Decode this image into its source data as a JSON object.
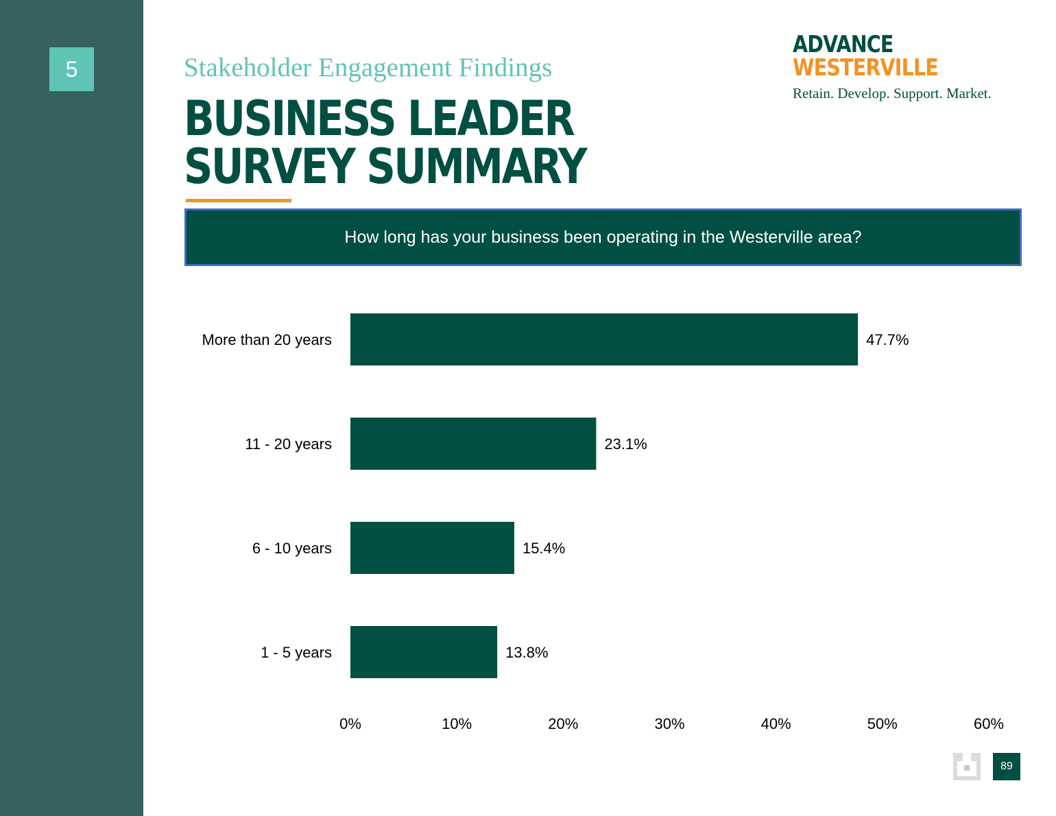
{
  "section": {
    "number": "5"
  },
  "header": {
    "subtitle": "Stakeholder Engagement Findings",
    "title": "BUSINESS LEADER SURVEY SUMMARY"
  },
  "logo": {
    "line1": "ADVANCE",
    "line2": "WESTERVILLE",
    "tagline": "Retain. Develop. Support. Market."
  },
  "question": "How long has your business been operating in the Westerville area?",
  "chart_data": {
    "type": "bar",
    "orientation": "horizontal",
    "categories": [
      "More than 20 years",
      "11 - 20 years",
      "6 - 10 years",
      "1 - 5 years"
    ],
    "values": [
      47.7,
      23.1,
      15.4,
      13.8
    ],
    "value_labels": [
      "47.7%",
      "23.1%",
      "15.4%",
      "13.8%"
    ],
    "xlim": [
      0,
      60
    ],
    "x_ticks": [
      0,
      10,
      20,
      30,
      40,
      50,
      60
    ],
    "x_tick_labels": [
      "0%",
      "10%",
      "20%",
      "30%",
      "40%",
      "50%",
      "60%"
    ],
    "grid": false,
    "bar_color": "#004f42"
  },
  "footer": {
    "page_number": "89"
  },
  "colors": {
    "sidebar": "#35625e",
    "teal_accent": "#5fc4b5",
    "dark_green": "#004f42",
    "orange": "#f39224",
    "question_border": "#3f6ac2"
  }
}
